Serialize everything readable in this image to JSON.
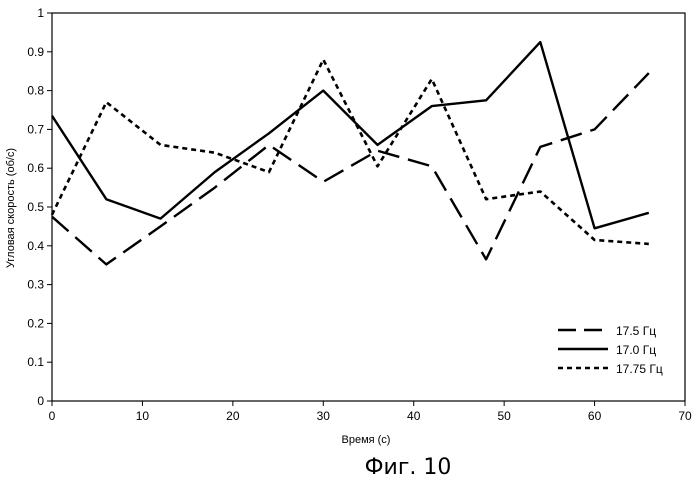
{
  "chart_data": {
    "type": "line",
    "xlabel": "Время (с)",
    "ylabel": "Угловая скорость (об/с)",
    "caption": "Фиг. 10",
    "xlim": [
      0,
      70
    ],
    "ylim": [
      0,
      1
    ],
    "xticks": [
      "0",
      "10",
      "20",
      "30",
      "40",
      "50",
      "60",
      "70"
    ],
    "yticks": [
      "0",
      "0.1",
      "0.2",
      "0.3",
      "0.4",
      "0.5",
      "0.6",
      "0.7",
      "0.8",
      "0.9",
      "1"
    ],
    "grid": false,
    "legend_position": "lower-right",
    "series": [
      {
        "name": "17.5 Гц",
        "style": "long-dash",
        "x": [
          0,
          6,
          12,
          18,
          24,
          30,
          36,
          42,
          48,
          54,
          60,
          66
        ],
        "y": [
          0.475,
          0.352,
          0.45,
          0.55,
          0.66,
          0.565,
          0.645,
          0.605,
          0.365,
          0.655,
          0.7,
          0.845
        ]
      },
      {
        "name": "17.0 Гц",
        "style": "solid",
        "x": [
          0,
          6,
          12,
          18,
          24,
          30,
          36,
          42,
          48,
          54,
          60,
          66
        ],
        "y": [
          0.735,
          0.52,
          0.47,
          0.59,
          0.69,
          0.8,
          0.66,
          0.76,
          0.775,
          0.925,
          0.445,
          0.485
        ]
      },
      {
        "name": "17.75 Гц",
        "style": "short-dash",
        "x": [
          0,
          6,
          12,
          18,
          24,
          30,
          36,
          42,
          48,
          54,
          60,
          66
        ],
        "y": [
          0.48,
          0.77,
          0.66,
          0.64,
          0.59,
          0.88,
          0.605,
          0.83,
          0.52,
          0.54,
          0.415,
          0.405
        ]
      }
    ]
  }
}
